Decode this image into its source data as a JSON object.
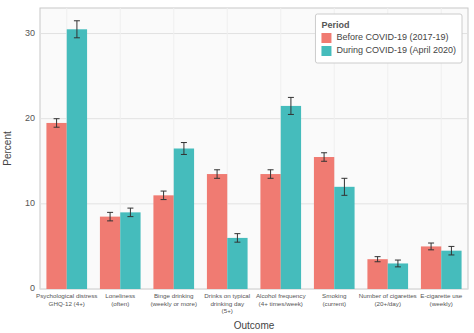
{
  "chart_data": {
    "type": "bar",
    "categories": [
      "Psychological distress\nGHQ-12 (4+)",
      "Loneliness\n(often)",
      "Binge drinking\n(weekly or more)",
      "Drinks on typical\ndrinking day\n(5+)",
      "Alcohol frequency\n(4+ times/week)",
      "Smoking\n(current)",
      "Number of cigarettes\n(20+/day)",
      "E-cigarette use\n(weekly)"
    ],
    "series": [
      {
        "name": "Before COVID-19 (2017-19)",
        "color": "#F07B72",
        "values": [
          19.5,
          8.5,
          11.0,
          13.5,
          13.5,
          15.5,
          3.5,
          5.0
        ],
        "errors": [
          0.5,
          0.5,
          0.5,
          0.5,
          0.5,
          0.5,
          0.3,
          0.4
        ]
      },
      {
        "name": "During COVID-19 (April 2020)",
        "color": "#45BCBC",
        "values": [
          30.5,
          9.0,
          16.5,
          6.0,
          21.5,
          12.0,
          3.0,
          4.5
        ],
        "errors": [
          1.0,
          0.5,
          0.7,
          0.5,
          1.0,
          1.0,
          0.4,
          0.5
        ]
      }
    ],
    "x_label": "Outcome",
    "y_label": "Percent",
    "legend_title": "Period",
    "ylim": [
      0,
      33
    ],
    "yticks": [
      0,
      10,
      20,
      30
    ],
    "grid": true,
    "legend": "upper right"
  }
}
